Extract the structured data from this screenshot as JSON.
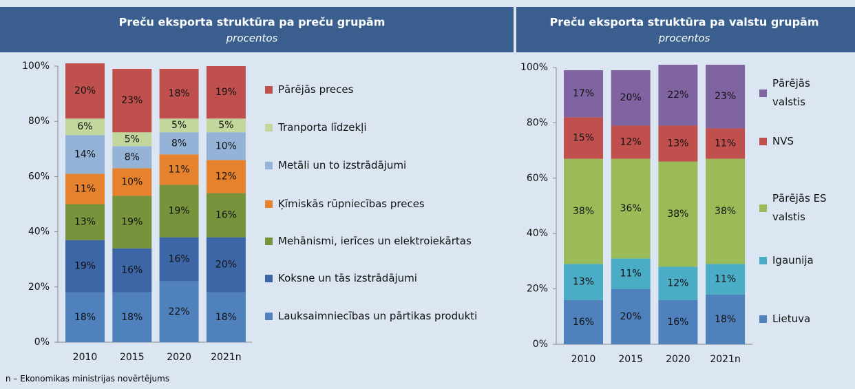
{
  "footnote": "n – Ekonomikas ministrijas novērtējums",
  "chart_data": [
    {
      "type": "stacked_bar",
      "title": "Preču eksporta struktūra pa preču grupām",
      "subtitle": "procentos",
      "categories": [
        "2010",
        "2015",
        "2020",
        "2021n"
      ],
      "ylim": [
        0,
        100
      ],
      "yticks": [
        {
          "value": 0,
          "label": "0%"
        },
        {
          "value": 20,
          "label": "20%"
        },
        {
          "value": 40,
          "label": "40%"
        },
        {
          "value": 60,
          "label": "60%"
        },
        {
          "value": 80,
          "label": "80%"
        },
        {
          "value": 100,
          "label": "100%"
        }
      ],
      "series": [
        {
          "name": "Lauksaimniecības un pārtikas produkti",
          "color": "#4f81bd",
          "values": [
            18,
            18,
            22,
            18
          ],
          "value_labels": [
            "18%",
            "18%",
            "22%",
            "18%"
          ]
        },
        {
          "name": "Koksne un tās izstrādājumi",
          "color": "#3d66a6",
          "values": [
            19,
            16,
            16,
            20
          ],
          "value_labels": [
            "19%",
            "16%",
            "16%",
            "20%"
          ]
        },
        {
          "name": "Mehānismi, ierīces un elektroiekārtas",
          "color": "#77933c",
          "values": [
            13,
            19,
            19,
            16
          ],
          "value_labels": [
            "13%",
            "19%",
            "19%",
            "16%"
          ]
        },
        {
          "name": "Ķīmiskās rūpniecības preces",
          "color": "#e6822e",
          "values": [
            11,
            10,
            11,
            12
          ],
          "value_labels": [
            "11%",
            "10%",
            "11%",
            "12%"
          ]
        },
        {
          "name": "Metāli un to izstrādājumi",
          "color": "#95b3d7",
          "values": [
            14,
            8,
            8,
            10
          ],
          "value_labels": [
            "14%",
            "8%",
            "8%",
            "10%"
          ]
        },
        {
          "name": "Tranporta līdzekļi",
          "color": "#c3d69b",
          "values": [
            6,
            5,
            5,
            5
          ],
          "value_labels": [
            "6%",
            "5%",
            "5%",
            "5%"
          ]
        },
        {
          "name": "Pārējās preces",
          "color": "#c0504d",
          "values": [
            20,
            23,
            18,
            19
          ],
          "value_labels": [
            "20%",
            "23%",
            "18%",
            "19%"
          ]
        }
      ]
    },
    {
      "type": "stacked_bar",
      "title": "Preču eksporta struktūra pa valstu grupām",
      "subtitle": "procentos",
      "categories": [
        "2010",
        "2015",
        "2020",
        "2021n"
      ],
      "ylim": [
        0,
        100
      ],
      "yticks": [
        {
          "value": 0,
          "label": "0%"
        },
        {
          "value": 20,
          "label": "20%"
        },
        {
          "value": 40,
          "label": "40%"
        },
        {
          "value": 60,
          "label": "60%"
        },
        {
          "value": 80,
          "label": "80%"
        },
        {
          "value": 100,
          "label": "100%"
        }
      ],
      "series": [
        {
          "name": "Lietuva",
          "color": "#4f81bd",
          "values": [
            16,
            20,
            16,
            18
          ],
          "value_labels": [
            "16%",
            "20%",
            "16%",
            "18%"
          ]
        },
        {
          "name": "Igaunija",
          "color": "#4bacc6",
          "values": [
            13,
            11,
            12,
            11
          ],
          "value_labels": [
            "13%",
            "11%",
            "12%",
            "11%"
          ]
        },
        {
          "name": "Pārējās ES valstis",
          "color": "#9bbb59",
          "values": [
            38,
            36,
            38,
            38
          ],
          "value_labels": [
            "38%",
            "36%",
            "38%",
            "38%"
          ]
        },
        {
          "name": "NVS",
          "color": "#c0504d",
          "values": [
            15,
            12,
            13,
            11
          ],
          "value_labels": [
            "15%",
            "12%",
            "13%",
            "11%"
          ]
        },
        {
          "name": "Pārējās valstis",
          "color": "#8064a2",
          "values": [
            17,
            20,
            22,
            23
          ],
          "value_labels": [
            "17%",
            "20%",
            "22%",
            "23%"
          ]
        }
      ]
    }
  ]
}
